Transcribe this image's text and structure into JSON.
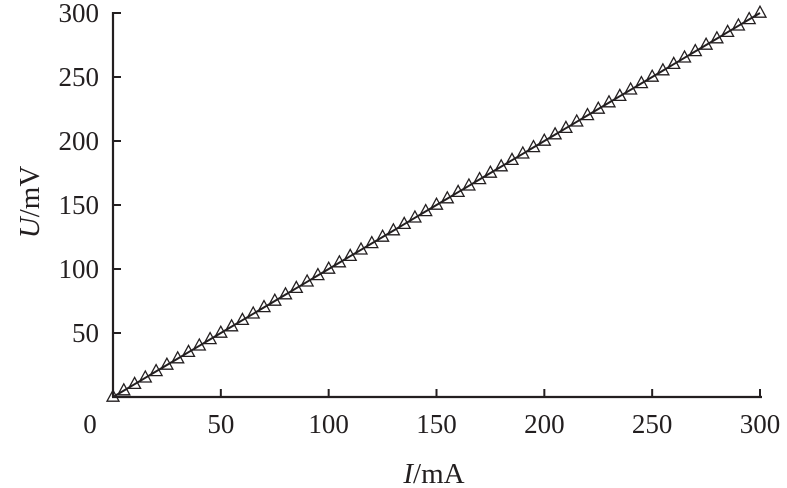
{
  "chart_data": {
    "type": "line",
    "xlabel": {
      "symbol": "I",
      "unit": "/mA"
    },
    "ylabel": {
      "symbol": "U",
      "unit": "/mV"
    },
    "xlim": [
      0,
      300
    ],
    "ylim": [
      0,
      300
    ],
    "xticks": [
      "0",
      "50",
      "100",
      "150",
      "200",
      "250",
      "300"
    ],
    "yticks": [
      "50",
      "100",
      "150",
      "200",
      "250",
      "300"
    ],
    "grid": false,
    "series": [
      {
        "marker": "triangle-open",
        "line": "solid",
        "color": "#231f20",
        "x": [
          0,
          5,
          10,
          15,
          20,
          25,
          30,
          35,
          40,
          45,
          50,
          55,
          60,
          65,
          70,
          75,
          80,
          85,
          90,
          95,
          100,
          105,
          110,
          115,
          120,
          125,
          130,
          135,
          140,
          145,
          150,
          155,
          160,
          165,
          170,
          175,
          180,
          185,
          190,
          195,
          200,
          205,
          210,
          215,
          220,
          225,
          230,
          235,
          240,
          245,
          250,
          255,
          260,
          265,
          270,
          275,
          280,
          285,
          290,
          295,
          300
        ],
        "y": [
          0,
          5,
          10,
          15,
          20,
          25,
          30,
          35,
          40,
          45,
          50,
          55,
          60,
          65,
          70,
          75,
          80,
          85,
          90,
          95,
          100,
          105,
          110,
          115,
          120,
          125,
          130,
          135,
          140,
          145,
          150,
          155,
          160,
          165,
          170,
          175,
          180,
          185,
          190,
          195,
          200,
          205,
          210,
          215,
          220,
          225,
          230,
          235,
          240,
          245,
          250,
          255,
          260,
          265,
          270,
          275,
          280,
          285,
          290,
          295,
          300
        ]
      }
    ]
  }
}
